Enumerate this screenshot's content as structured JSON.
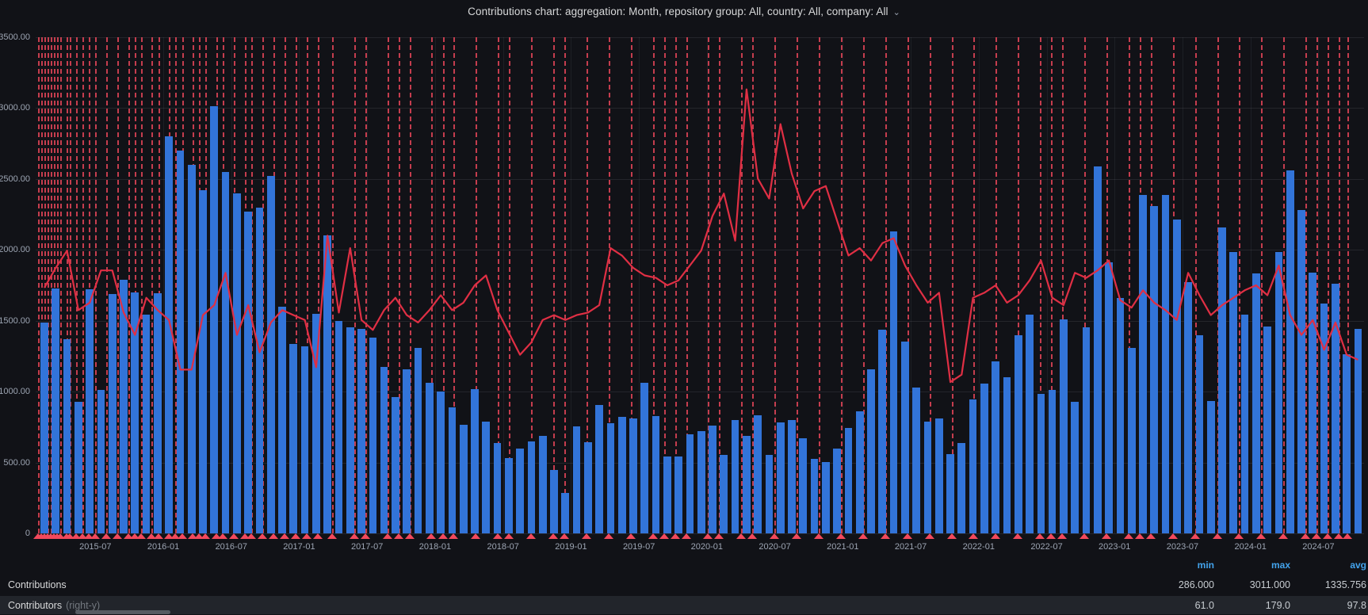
{
  "title": {
    "text": "Contributions chart: aggregation: Month, repository group: All, country: All, company: All",
    "chevron": "⌄"
  },
  "colors": {
    "background": "#111217",
    "bar": "#3274d9",
    "line": "#e02f44",
    "annotation": "#f2495c",
    "axis_text": "#9da5b3",
    "legend_header": "#43a3ec"
  },
  "legend": {
    "headers": [
      "min",
      "max",
      "avg"
    ],
    "rows": [
      {
        "label": "Contributions",
        "sub": "",
        "min": "286.000",
        "max": "3011.000",
        "avg": "1335.756"
      },
      {
        "label": "Contributors",
        "sub": "(right-y)",
        "min": "61.0",
        "max": "179.0",
        "avg": "97.8"
      }
    ]
  },
  "chart_data": {
    "type": "bar",
    "title": "Contributions chart: aggregation: Month, repository group: All, country: All, company: All",
    "xlabel": "",
    "ylabel_left": "Contributions",
    "ylabel_right": "Contributors",
    "ylim_left": [
      0,
      3500
    ],
    "ylim_right": [
      0,
      200
    ],
    "grid": true,
    "legend_position": "bottom",
    "y_ticks_left": [
      "3500.00",
      "3000.00",
      "2500.00",
      "2000.00",
      "1500.00",
      "1000.00",
      "500.00",
      "0"
    ],
    "y_tick_values_left": [
      3500,
      3000,
      2500,
      2000,
      1500,
      1000,
      500,
      0
    ],
    "x_ticks": [
      {
        "label": "2015-07",
        "month_index": 5
      },
      {
        "label": "2016-01",
        "month_index": 11
      },
      {
        "label": "2016-07",
        "month_index": 17
      },
      {
        "label": "2017-01",
        "month_index": 23
      },
      {
        "label": "2017-07",
        "month_index": 29
      },
      {
        "label": "2018-01",
        "month_index": 35
      },
      {
        "label": "2018-07",
        "month_index": 41
      },
      {
        "label": "2019-01",
        "month_index": 47
      },
      {
        "label": "2019-07",
        "month_index": 53
      },
      {
        "label": "2020-01",
        "month_index": 59
      },
      {
        "label": "2020-07",
        "month_index": 65
      },
      {
        "label": "2021-01",
        "month_index": 71
      },
      {
        "label": "2021-07",
        "month_index": 77
      },
      {
        "label": "2022-01",
        "month_index": 83
      },
      {
        "label": "2022-07",
        "month_index": 89
      },
      {
        "label": "2023-01",
        "month_index": 95
      },
      {
        "label": "2023-07",
        "month_index": 101
      },
      {
        "label": "2024-01",
        "month_index": 107
      },
      {
        "label": "2024-07",
        "month_index": 113
      }
    ],
    "start_month": "2015-02",
    "categories": [
      "2015-02",
      "2015-03",
      "2015-04",
      "2015-05",
      "2015-06",
      "2015-07",
      "2015-08",
      "2015-09",
      "2015-10",
      "2015-11",
      "2015-12",
      "2016-01",
      "2016-02",
      "2016-03",
      "2016-04",
      "2016-05",
      "2016-06",
      "2016-07",
      "2016-08",
      "2016-09",
      "2016-10",
      "2016-11",
      "2016-12",
      "2017-01",
      "2017-02",
      "2017-03",
      "2017-04",
      "2017-05",
      "2017-06",
      "2017-07",
      "2017-08",
      "2017-09",
      "2017-10",
      "2017-11",
      "2017-12",
      "2018-01",
      "2018-02",
      "2018-03",
      "2018-04",
      "2018-05",
      "2018-06",
      "2018-07",
      "2018-08",
      "2018-09",
      "2018-10",
      "2018-11",
      "2018-12",
      "2019-01",
      "2019-02",
      "2019-03",
      "2019-04",
      "2019-05",
      "2019-06",
      "2019-07",
      "2019-08",
      "2019-09",
      "2019-10",
      "2019-11",
      "2019-12",
      "2020-01",
      "2020-02",
      "2020-03",
      "2020-04",
      "2020-05",
      "2020-06",
      "2020-07",
      "2020-08",
      "2020-09",
      "2020-10",
      "2020-11",
      "2020-12",
      "2021-01",
      "2021-02",
      "2021-03",
      "2021-04",
      "2021-05",
      "2021-06",
      "2021-07",
      "2021-08",
      "2021-09",
      "2021-10",
      "2021-11",
      "2021-12",
      "2022-01",
      "2022-02",
      "2022-03",
      "2022-04",
      "2022-05",
      "2022-06",
      "2022-07",
      "2022-08",
      "2022-09",
      "2022-10",
      "2022-11",
      "2022-12",
      "2023-01",
      "2023-02",
      "2023-03",
      "2023-04",
      "2023-05",
      "2023-06",
      "2023-07",
      "2023-08",
      "2023-09",
      "2023-10",
      "2023-11",
      "2023-12",
      "2024-01",
      "2024-02",
      "2024-03",
      "2024-04",
      "2024-05",
      "2024-06",
      "2024-07",
      "2024-08",
      "2024-09",
      "2024-10"
    ],
    "series": [
      {
        "name": "Contributions",
        "type": "bar",
        "axis": "left",
        "color": "#3274d9",
        "values": [
          1490,
          1730,
          1370,
          930,
          1720,
          1010,
          1690,
          1790,
          1700,
          1545,
          1695,
          2800,
          2700,
          2600,
          2420,
          3011,
          2550,
          2400,
          2270,
          2300,
          2520,
          1600,
          1335,
          1320,
          1550,
          2100,
          1500,
          1455,
          1440,
          1380,
          1175,
          960,
          1160,
          1310,
          1060,
          1000,
          890,
          765,
          1020,
          790,
          640,
          530,
          600,
          650,
          690,
          450,
          286,
          755,
          645,
          905,
          780,
          820,
          810,
          1060,
          825,
          545,
          540,
          700,
          720,
          760,
          555,
          800,
          690,
          835,
          555,
          785,
          800,
          670,
          525,
          505,
          600,
          745,
          860,
          1160,
          1435,
          2130,
          1355,
          1030,
          790,
          810,
          560,
          635,
          945,
          1055,
          1215,
          1100,
          1400,
          1545,
          985,
          1010,
          1510,
          930,
          1455,
          2590,
          1915,
          1660,
          1310,
          2390,
          2310,
          2390,
          2215,
          1770,
          1400,
          935,
          2160,
          1985,
          1545,
          1835,
          1460,
          1985,
          2560,
          2280,
          1840,
          1620,
          1760,
          1265,
          1440
        ],
        "stats": {
          "min": 286.0,
          "max": 3011.0,
          "avg": 1335.756
        }
      },
      {
        "name": "Contributors",
        "type": "line",
        "axis": "right",
        "color": "#e02f44",
        "values": [
          99,
          107,
          114,
          90,
          93,
          106,
          106,
          89,
          80,
          95,
          90,
          86,
          66,
          66,
          88,
          92,
          105,
          80,
          92,
          73,
          85,
          90,
          88,
          86,
          67,
          120,
          89,
          115,
          86,
          82,
          90,
          95,
          88,
          85,
          90,
          96,
          90,
          93,
          100,
          104,
          90,
          81,
          72,
          77,
          86,
          88,
          86,
          88,
          89,
          92,
          115,
          112,
          107,
          104,
          103,
          100,
          102,
          108,
          114,
          128,
          137,
          118,
          179,
          143,
          135,
          165,
          145,
          131,
          138,
          140,
          126,
          112,
          115,
          110,
          117,
          119,
          108,
          100,
          93,
          97,
          61,
          64,
          95,
          97,
          100,
          93,
          96,
          102,
          110,
          95,
          92,
          105,
          103,
          106,
          110,
          94,
          91,
          98,
          93,
          90,
          86,
          105,
          96,
          88,
          92,
          95,
          98,
          100,
          96,
          108,
          88,
          80,
          86,
          74,
          85,
          72,
          70
        ],
        "stats": {
          "min": 61.0,
          "max": 179.0,
          "avg": 97.8
        }
      }
    ],
    "annotations_pct": [
      0.18,
      0.42,
      0.65,
      0.89,
      1.13,
      1.37,
      1.61,
      1.84,
      2.32,
      2.56,
      3.03,
      3.51,
      3.99,
      4.46,
      5.29,
      6.13,
      6.96,
      7.44,
      7.91,
      8.74,
      9.22,
      10.05,
      10.53,
      11.01,
      11.84,
      12.31,
      12.79,
      13.62,
      14.1,
      14.93,
      15.76,
      16.24,
      17.07,
      17.91,
      18.74,
      19.57,
      20.4,
      21.24,
      22.31,
      23.97,
      24.81,
      26.47,
      27.31,
      28.14,
      29.8,
      30.64,
      31.47,
      33.13,
      34.8,
      35.63,
      37.3,
      38.96,
      39.8,
      41.46,
      43.13,
      44.79,
      46.46,
      47.29,
      48.13,
      48.96,
      50.62,
      51.46,
      53.12,
      53.96,
      55.62,
      57.29,
      58.95,
      60.62,
      62.28,
      63.95,
      65.62,
      67.28,
      68.95,
      70.61,
      72.28,
      73.94,
      75.61,
      76.44,
      77.27,
      78.94,
      80.61,
      82.27,
      83.1,
      83.94,
      85.6,
      87.27,
      88.94,
      90.6,
      92.27,
      93.93,
      95.6,
      96.43,
      97.26,
      98.1,
      98.75
    ]
  }
}
